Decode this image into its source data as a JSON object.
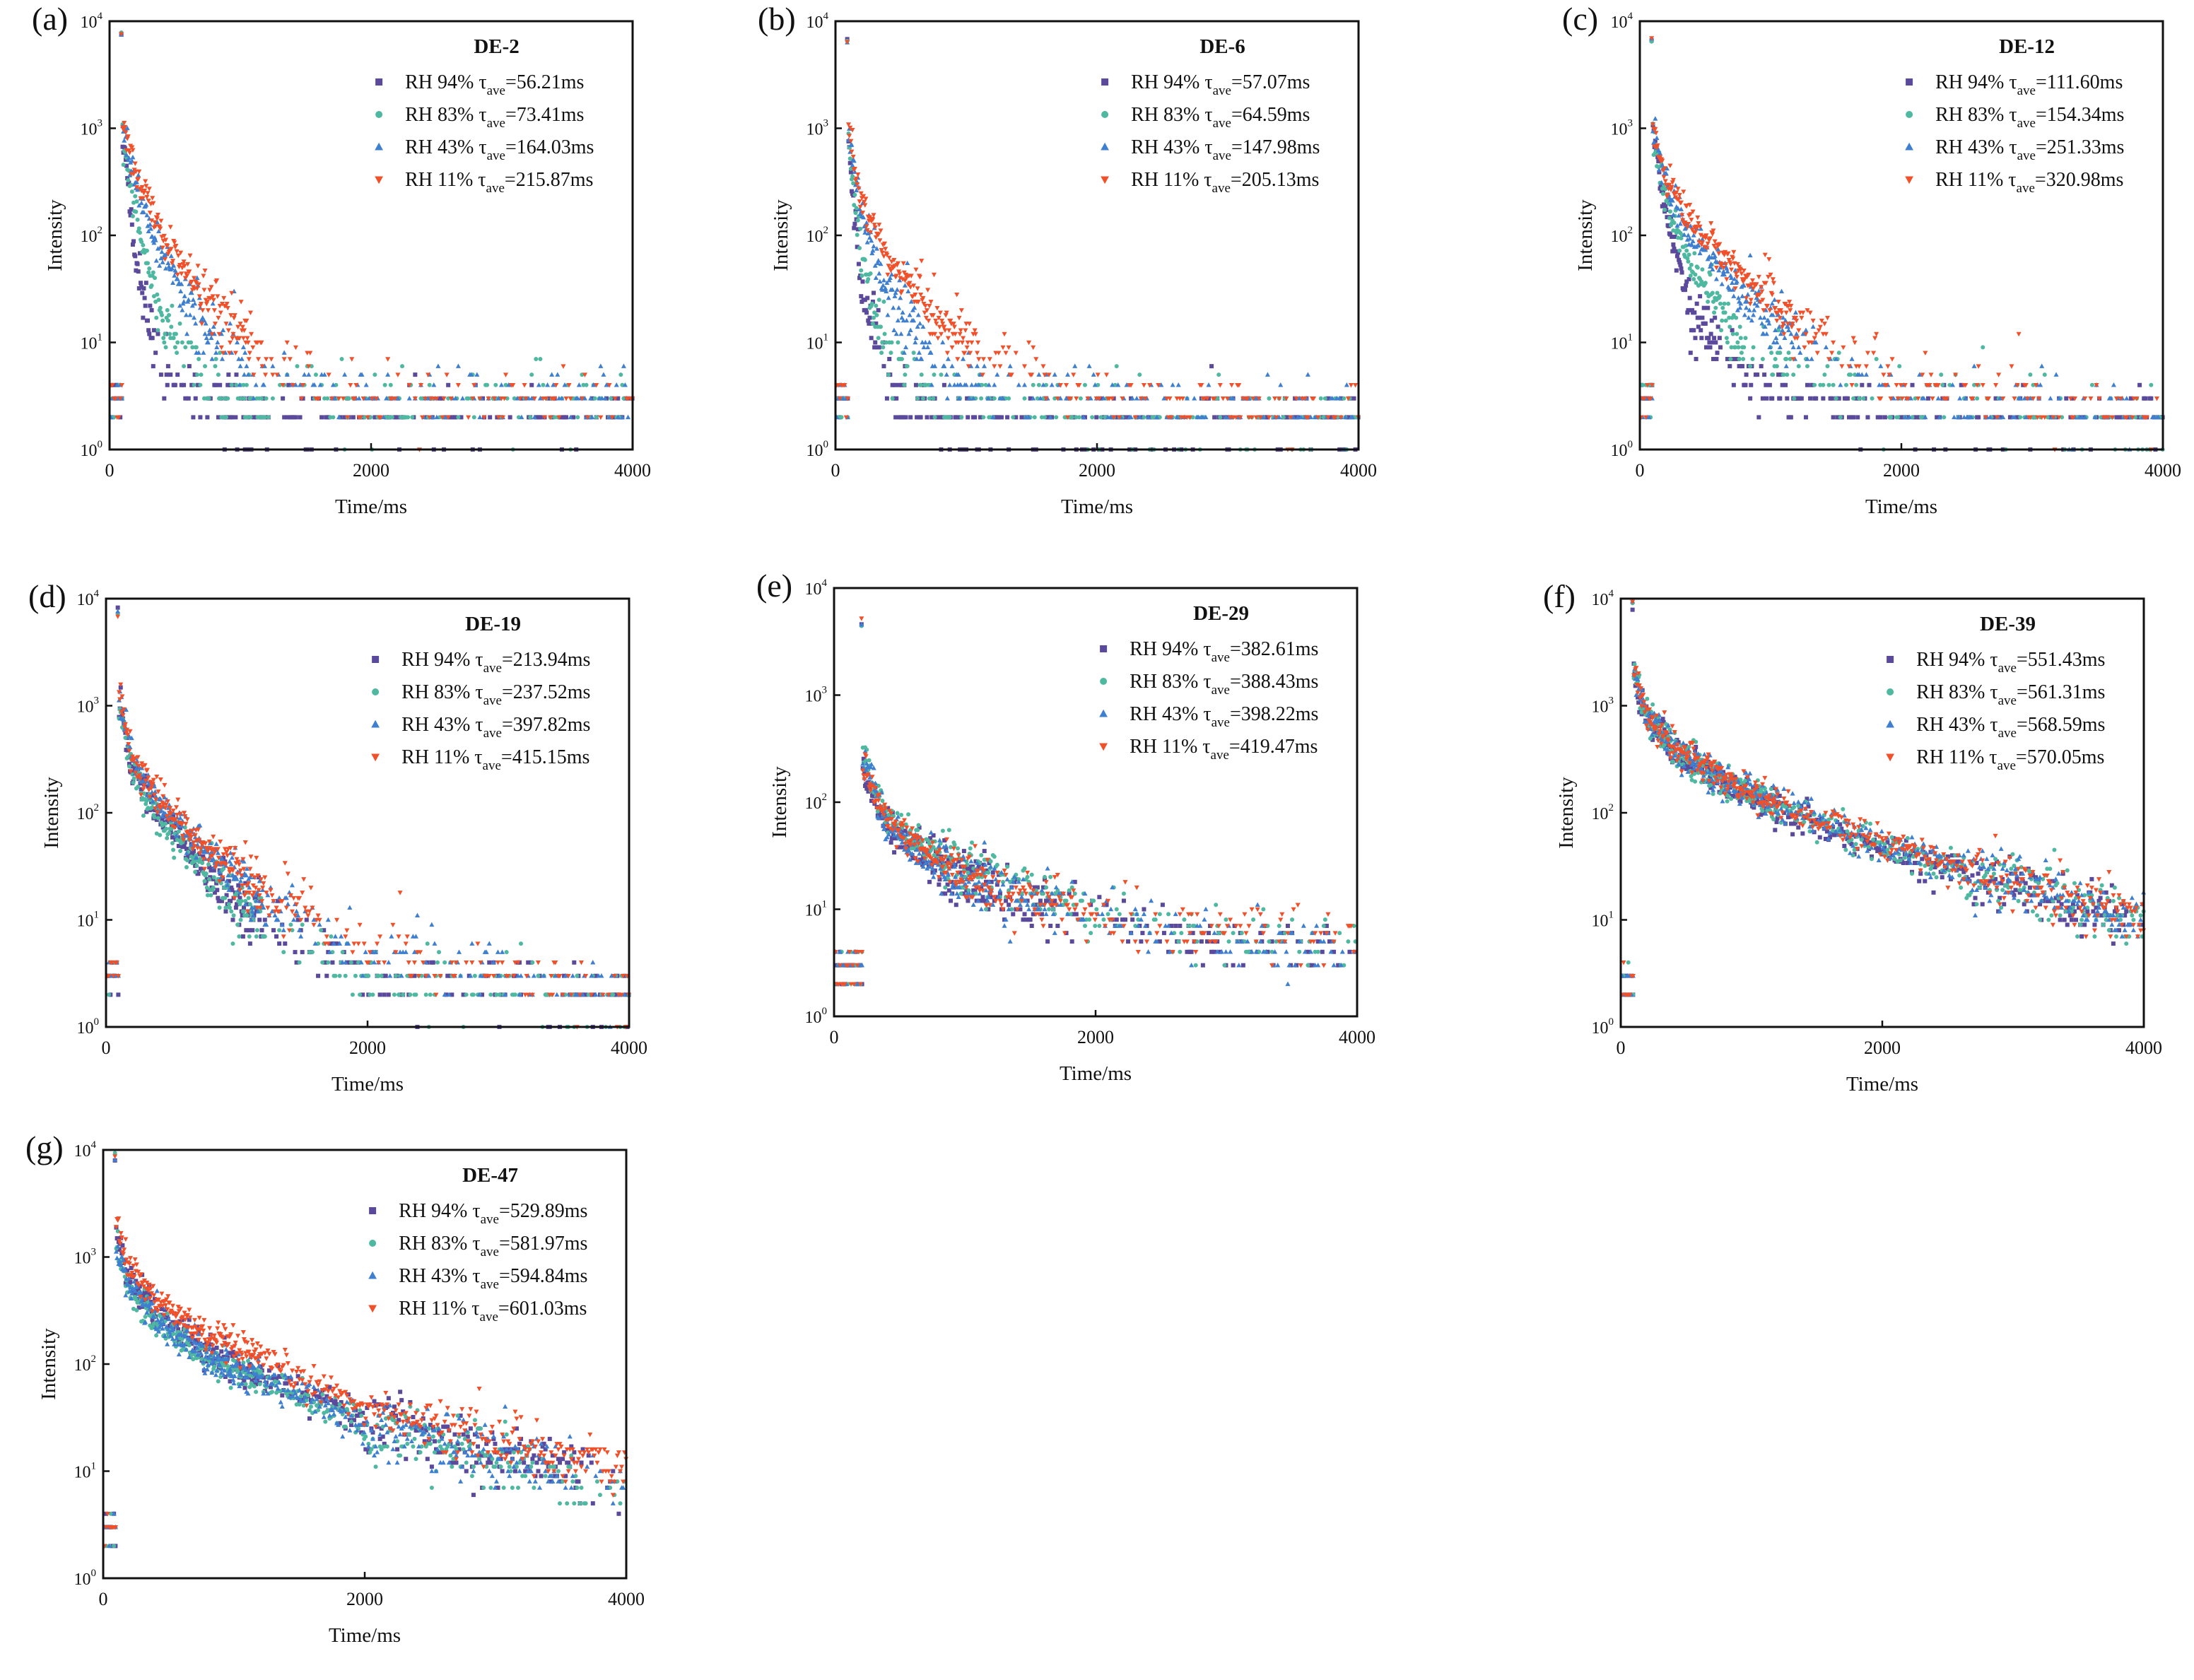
{
  "colors": {
    "RH 94%": "#5b4a9b",
    "RH 83%": "#4fb8a0",
    "RH 43%": "#3f7fd0",
    "RH 11%": "#f0502a"
  },
  "chart_data": [
    {
      "panel": "(a)",
      "title": "DE-2",
      "type": "scatter",
      "xlabel": "Time/ms",
      "ylabel": "Intensity",
      "xlim": [
        0,
        4000
      ],
      "ylim": [
        1,
        10000
      ],
      "yscale": "log",
      "xticks": [
        0,
        2000,
        4000
      ],
      "ytick_exponents": [
        0,
        1,
        2,
        3,
        4
      ],
      "peak": 8000,
      "start": 100,
      "x": [
        100,
        200,
        400,
        800,
        1200,
        2000,
        4000
      ],
      "series": [
        {
          "name": "RH 94%",
          "tau_label": "=56.21ms",
          "marker": "square",
          "values": [
            900,
            60,
            5,
            3,
            2,
            2,
            2
          ]
        },
        {
          "name": "RH 83%",
          "tau_label": "=73.41ms",
          "marker": "circle",
          "values": [
            800,
            150,
            15,
            4,
            3,
            3,
            3
          ]
        },
        {
          "name": "RH 43%",
          "tau_label": "=164.03ms",
          "marker": "triangle-up",
          "values": [
            1000,
            300,
            60,
            10,
            5,
            3,
            3
          ]
        },
        {
          "name": "RH 11%",
          "tau_label": "=215.87ms",
          "marker": "triangle-down",
          "values": [
            1200,
            400,
            100,
            20,
            7,
            3,
            3
          ]
        }
      ]
    },
    {
      "panel": "(b)",
      "title": "DE-6",
      "type": "scatter",
      "xlabel": "Time/ms",
      "ylabel": "Intensity",
      "xlim": [
        0,
        4000
      ],
      "ylim": [
        1,
        10000
      ],
      "yscale": "log",
      "xticks": [
        0,
        2000,
        4000
      ],
      "ytick_exponents": [
        0,
        1,
        2,
        3,
        4
      ],
      "peak": 7000,
      "start": 100,
      "x": [
        100,
        200,
        400,
        800,
        1200,
        2000,
        4000
      ],
      "series": [
        {
          "name": "RH 94%",
          "tau_label": "=57.07ms",
          "marker": "square",
          "values": [
            700,
            30,
            4,
            2,
            2,
            2,
            2
          ]
        },
        {
          "name": "RH 83%",
          "tau_label": "=64.59ms",
          "marker": "circle",
          "values": [
            800,
            60,
            8,
            3,
            3,
            2,
            2
          ]
        },
        {
          "name": "RH 43%",
          "tau_label": "=147.98ms",
          "marker": "triangle-up",
          "values": [
            900,
            150,
            30,
            6,
            4,
            3,
            2
          ]
        },
        {
          "name": "RH 11%",
          "tau_label": "=205.13ms",
          "marker": "triangle-down",
          "values": [
            1000,
            200,
            60,
            15,
            7,
            3,
            2
          ]
        }
      ]
    },
    {
      "panel": "(c)",
      "title": "DE-12",
      "type": "scatter",
      "xlabel": "Time/ms",
      "ylabel": "Intensity",
      "xlim": [
        0,
        4000
      ],
      "ylim": [
        1,
        10000
      ],
      "yscale": "log",
      "xticks": [
        0,
        2000,
        4000
      ],
      "ytick_exponents": [
        0,
        1,
        2,
        3,
        4
      ],
      "peak": 7500,
      "start": 100,
      "x": [
        100,
        200,
        400,
        800,
        1200,
        2000,
        4000
      ],
      "series": [
        {
          "name": "RH 94%",
          "tau_label": "=111.60ms",
          "marker": "square",
          "values": [
            900,
            150,
            20,
            5,
            3,
            2,
            2
          ]
        },
        {
          "name": "RH 83%",
          "tau_label": "=154.34ms",
          "marker": "circle",
          "values": [
            900,
            200,
            50,
            10,
            5,
            3,
            2
          ]
        },
        {
          "name": "RH 43%",
          "tau_label": "=251.33ms",
          "marker": "triangle-up",
          "values": [
            1000,
            300,
            100,
            25,
            10,
            3,
            2
          ]
        },
        {
          "name": "RH 11%",
          "tau_label": "=320.98ms",
          "marker": "triangle-down",
          "values": [
            1000,
            350,
            130,
            40,
            15,
            4,
            2
          ]
        }
      ]
    },
    {
      "panel": "(d)",
      "title": "DE-19",
      "type": "scatter",
      "xlabel": "Time/ms",
      "ylabel": "Intensity",
      "xlim": [
        0,
        4000
      ],
      "ylim": [
        1,
        10000
      ],
      "yscale": "log",
      "xticks": [
        0,
        2000,
        4000
      ],
      "ytick_exponents": [
        0,
        1,
        2,
        3,
        4
      ],
      "peak": 8000,
      "start": 100,
      "x": [
        100,
        200,
        400,
        800,
        1200,
        2000,
        4000
      ],
      "series": [
        {
          "name": "RH 94%",
          "tau_label": "=213.94ms",
          "marker": "square",
          "values": [
            1000,
            250,
            100,
            25,
            10,
            3,
            2
          ]
        },
        {
          "name": "RH 83%",
          "tau_label": "=237.52ms",
          "marker": "circle",
          "values": [
            1000,
            250,
            90,
            25,
            10,
            3,
            2
          ]
        },
        {
          "name": "RH 43%",
          "tau_label": "=397.82ms",
          "marker": "triangle-up",
          "values": [
            1200,
            300,
            120,
            40,
            15,
            5,
            2
          ]
        },
        {
          "name": "RH 11%",
          "tau_label": "=415.15ms",
          "marker": "triangle-down",
          "values": [
            1300,
            300,
            130,
            45,
            18,
            5,
            2
          ]
        }
      ]
    },
    {
      "panel": "(e)",
      "title": "DE-29",
      "type": "scatter",
      "xlabel": "Time/ms",
      "ylabel": "Intensity",
      "xlim": [
        0,
        4000
      ],
      "ylim": [
        1,
        10000
      ],
      "yscale": "log",
      "xticks": [
        0,
        2000,
        4000
      ],
      "ytick_exponents": [
        0,
        1,
        2,
        3,
        4
      ],
      "peak": 5000,
      "start": 220,
      "x": [
        220,
        400,
        800,
        1200,
        2000,
        3000,
        4000
      ],
      "series": [
        {
          "name": "RH 94%",
          "tau_label": "=382.61ms",
          "marker": "square",
          "values": [
            200,
            60,
            25,
            15,
            8,
            5,
            4
          ]
        },
        {
          "name": "RH 83%",
          "tau_label": "=388.43ms",
          "marker": "circle",
          "values": [
            300,
            70,
            30,
            20,
            10,
            6,
            5
          ]
        },
        {
          "name": "RH 43%",
          "tau_label": "=398.22ms",
          "marker": "triangle-up",
          "values": [
            250,
            60,
            25,
            15,
            8,
            5,
            4
          ]
        },
        {
          "name": "RH 11%",
          "tau_label": "=419.47ms",
          "marker": "triangle-down",
          "values": [
            220,
            65,
            28,
            17,
            9,
            6,
            5
          ]
        }
      ]
    },
    {
      "panel": "(f)",
      "title": "DE-39",
      "type": "scatter",
      "xlabel": "Time/ms",
      "ylabel": "Intensity",
      "xlim": [
        0,
        4000
      ],
      "ylim": [
        1,
        10000
      ],
      "yscale": "log",
      "xticks": [
        0,
        2000,
        4000
      ],
      "ytick_exponents": [
        0,
        1,
        2,
        3,
        4
      ],
      "peak": 9000,
      "start": 100,
      "x": [
        100,
        200,
        400,
        800,
        1200,
        2000,
        4000
      ],
      "series": [
        {
          "name": "RH 94%",
          "tau_label": "=551.43ms",
          "marker": "square",
          "values": [
            2000,
            750,
            380,
            190,
            110,
            45,
            9
          ]
        },
        {
          "name": "RH 83%",
          "tau_label": "=561.31ms",
          "marker": "circle",
          "values": [
            2000,
            780,
            390,
            195,
            115,
            48,
            10
          ]
        },
        {
          "name": "RH 43%",
          "tau_label": "=568.59ms",
          "marker": "triangle-up",
          "values": [
            2100,
            800,
            400,
            200,
            120,
            50,
            10
          ]
        },
        {
          "name": "RH 11%",
          "tau_label": "=570.05ms",
          "marker": "triangle-down",
          "values": [
            2200,
            820,
            410,
            205,
            122,
            52,
            10
          ]
        }
      ]
    },
    {
      "panel": "(g)",
      "title": "DE-47",
      "type": "scatter",
      "xlabel": "Time/ms",
      "ylabel": "Intensity",
      "xlim": [
        0,
        4000
      ],
      "ylim": [
        1,
        10000
      ],
      "yscale": "log",
      "xticks": [
        0,
        2000,
        4000
      ],
      "ytick_exponents": [
        0,
        1,
        2,
        3,
        4
      ],
      "peak": 9000,
      "start": 100,
      "x": [
        100,
        200,
        400,
        800,
        1200,
        2000,
        4000
      ],
      "series": [
        {
          "name": "RH 94%",
          "tau_label": "=529.89ms",
          "marker": "square",
          "values": [
            1500,
            600,
            300,
            130,
            80,
            30,
            8
          ]
        },
        {
          "name": "RH 83%",
          "tau_label": "=581.97ms",
          "marker": "circle",
          "values": [
            1200,
            500,
            250,
            110,
            70,
            25,
            6
          ]
        },
        {
          "name": "RH 43%",
          "tau_label": "=594.84ms",
          "marker": "triangle-up",
          "values": [
            1300,
            550,
            270,
            120,
            75,
            28,
            7
          ]
        },
        {
          "name": "RH 11%",
          "tau_label": "=601.03ms",
          "marker": "triangle-down",
          "values": [
            2000,
            800,
            400,
            180,
            110,
            40,
            10
          ]
        }
      ]
    }
  ]
}
